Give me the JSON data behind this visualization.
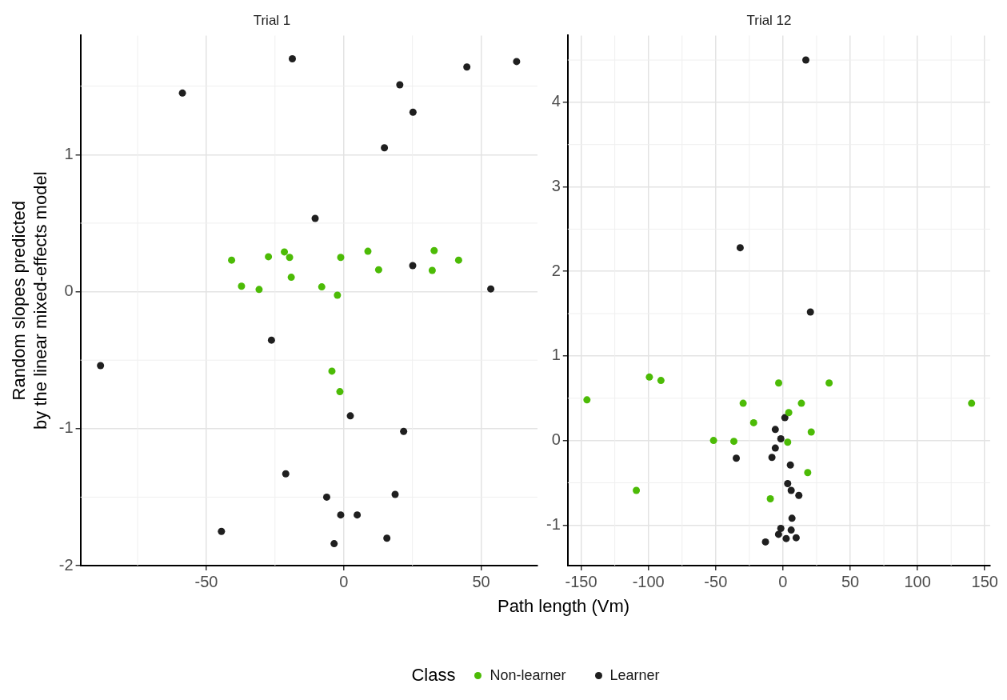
{
  "chart_data": [
    {
      "type": "scatter",
      "title": "Trial 1",
      "xlabel": "Path length (Vm)",
      "ylabel": "Random slopes predicted\nby the linear mixed-effects model",
      "legend_title": "Class",
      "legend": "bottom",
      "grid": true,
      "marker": "circle",
      "xlim": [
        -95.8,
        70.5
      ],
      "xticks": [
        -50,
        0,
        50
      ],
      "ylim": [
        -2.0,
        1.87
      ],
      "yticks": [
        -2,
        -1,
        0,
        1
      ],
      "series": [
        {
          "name": "Non-learner",
          "color": "#4cbb06",
          "x": [
            -40.8,
            -27.4,
            -21.6,
            -19.7,
            -1.1,
            8.8,
            32.9,
            41.8,
            12.7,
            32.2,
            -19.1,
            -37.2,
            -30.8,
            -8.0,
            -2.3,
            -4.3,
            -1.4
          ],
          "values": [
            0.23,
            0.255,
            0.29,
            0.25,
            0.25,
            0.295,
            0.3,
            0.23,
            0.16,
            0.155,
            0.105,
            0.04,
            0.016,
            0.035,
            -0.026,
            -0.58,
            -0.73
          ]
        },
        {
          "name": "Learner",
          "color": "#1f1f1f",
          "x": [
            -18.7,
            -58.7,
            44.8,
            62.9,
            20.4,
            25.2,
            14.8,
            -10.4,
            25.1,
            53.5,
            -26.3,
            -88.5,
            2.4,
            21.8,
            -21.1,
            -6.2,
            18.7,
            -1.1,
            4.9,
            -44.5,
            -3.5,
            15.7
          ],
          "values": [
            1.7,
            1.45,
            1.64,
            1.68,
            1.51,
            1.31,
            1.05,
            0.535,
            0.19,
            0.02,
            -0.354,
            -0.54,
            -0.907,
            -1.02,
            -1.33,
            -1.5,
            -1.48,
            -1.63,
            -1.63,
            -1.75,
            -1.84,
            -1.8
          ]
        }
      ]
    },
    {
      "type": "scatter",
      "title": "Trial 12",
      "grid": true,
      "marker": "circle",
      "xlim": [
        -160,
        154
      ],
      "xticks": [
        -150,
        -100,
        -50,
        0,
        50,
        100,
        150
      ],
      "ylim": [
        -1.48,
        4.79
      ],
      "yticks": [
        -1,
        0,
        1,
        2,
        3,
        4
      ],
      "series": [
        {
          "color": "#4cbb06",
          "x": [
            -99.3,
            -90.7,
            -3.2,
            34.3,
            -145.7,
            140.2,
            -109,
            -29.6,
            13.7,
            4.3,
            -21.8,
            21.0,
            -51.6,
            -36.5,
            3.5,
            18.4,
            -9.4
          ],
          "values": [
            0.75,
            0.71,
            0.68,
            0.68,
            0.48,
            0.44,
            -0.59,
            0.44,
            0.44,
            0.33,
            0.21,
            0.1,
            0.0,
            -0.01,
            -0.02,
            -0.38,
            -0.69
          ]
        },
        {
          "color": "#1f1f1f",
          "x": [
            17.0,
            -31.8,
            20.4,
            1.4,
            -5.7,
            -1.6,
            -5.7,
            -34.7,
            -8.2,
            5.5,
            3.5,
            6.1,
            11.8,
            6.7,
            -1.6,
            6.1,
            -3.3,
            2.4,
            9.8,
            -13.0
          ],
          "values": [
            4.5,
            2.28,
            1.52,
            0.27,
            0.13,
            0.02,
            -0.09,
            -0.21,
            -0.2,
            -0.29,
            -0.51,
            -0.59,
            -0.65,
            -0.92,
            -1.04,
            -1.06,
            -1.11,
            -1.16,
            -1.15,
            -1.2
          ]
        }
      ]
    }
  ]
}
